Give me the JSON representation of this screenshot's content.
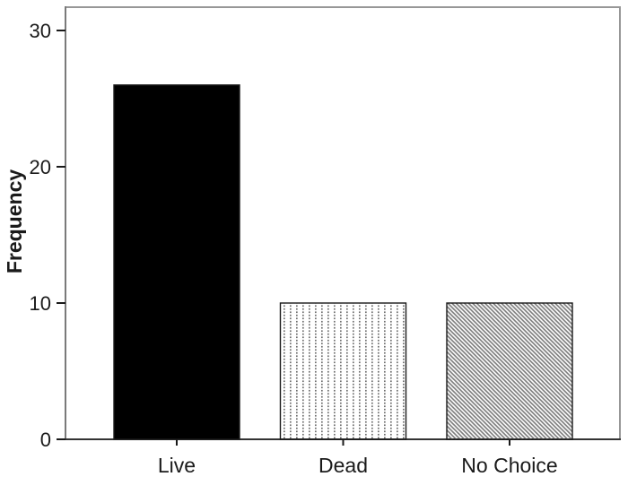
{
  "chart_data": {
    "type": "bar",
    "title": "",
    "xlabel": "",
    "ylabel": "Frequency",
    "categories": [
      "Live",
      "Dead",
      "No Choice"
    ],
    "values": [
      26,
      10,
      10
    ],
    "yticks": [
      0,
      10,
      20,
      30
    ],
    "ylim": [
      0,
      31.8
    ],
    "grid": false,
    "legend_position": "none",
    "bar_styles": [
      {
        "name": "solid-black",
        "pattern": "solid"
      },
      {
        "name": "dotted",
        "pattern": "dots"
      },
      {
        "name": "diagonal-hatch",
        "pattern": "hatch"
      }
    ],
    "colors": {
      "bar_black": "#000000",
      "bar_border": "#1a1a1a",
      "frame_gray": "#979797",
      "axis_left": "#7a7a7a",
      "axis_bottom": "#333333",
      "tick_color": "#1a1a1a",
      "text_color": "#1a1a1a",
      "dot_pattern": "#6e6e6e",
      "hatch_pattern": "#7d7d7d",
      "background": "#ffffff"
    }
  }
}
